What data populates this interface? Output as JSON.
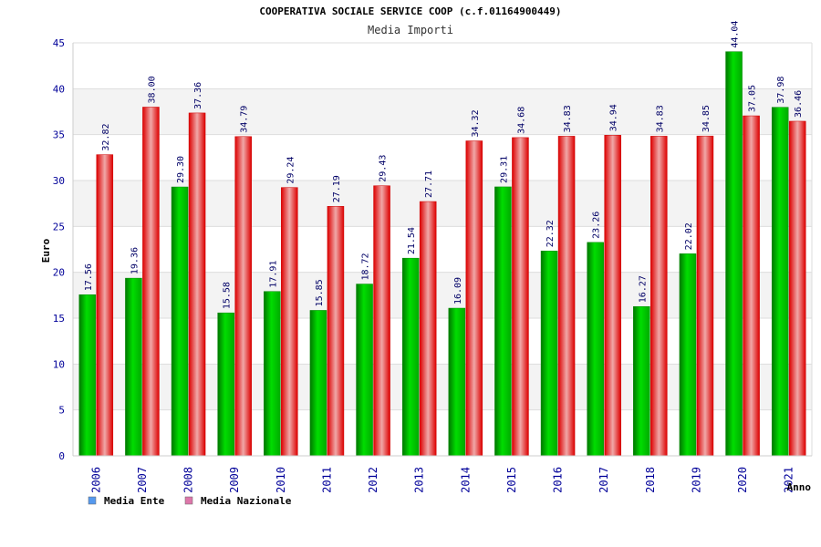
{
  "chart_data": {
    "type": "bar",
    "title": "COOPERATIVA SOCIALE SERVICE COOP (c.f.01164900449)",
    "subtitle": "Media Importi",
    "xlabel": "Anno",
    "ylabel": "Euro",
    "ylim": [
      0,
      45
    ],
    "yticks": [
      "0",
      "5",
      "10",
      "15",
      "20",
      "25",
      "30",
      "35",
      "40",
      "45"
    ],
    "grid": true,
    "legend_position": "bottom-left",
    "categories": [
      "2006",
      "2007",
      "2008",
      "2009",
      "2010",
      "2011",
      "2012",
      "2013",
      "2014",
      "2015",
      "2016",
      "2017",
      "2018",
      "2019",
      "2020",
      "2021"
    ],
    "series": [
      {
        "name": "Media Ente",
        "color": "#00cc00",
        "legend_color": "#5599ee",
        "values": [
          17.56,
          19.36,
          29.3,
          15.58,
          17.91,
          15.85,
          18.72,
          21.54,
          16.09,
          29.31,
          22.32,
          23.26,
          16.27,
          22.02,
          44.04,
          37.98
        ],
        "labels": [
          "17.56",
          "19.36",
          "29.30",
          "15.58",
          "17.91",
          "15.85",
          "18.72",
          "21.54",
          "16.09",
          "29.31",
          "22.32",
          "23.26",
          "16.27",
          "22.02",
          "44.04",
          "37.98"
        ]
      },
      {
        "name": "Media Nazionale",
        "color": "#ee1111",
        "legend_color": "#dd77aa",
        "values": [
          32.82,
          38.0,
          37.36,
          34.79,
          29.24,
          27.19,
          29.43,
          27.71,
          34.32,
          34.68,
          34.83,
          34.94,
          34.83,
          34.85,
          37.05,
          36.46
        ],
        "labels": [
          "32.82",
          "38.00",
          "37.36",
          "34.79",
          "29.24",
          "27.19",
          "29.43",
          "27.71",
          "34.32",
          "34.68",
          "34.83",
          "34.94",
          "34.83",
          "34.85",
          "37.05",
          "36.46"
        ]
      }
    ]
  }
}
